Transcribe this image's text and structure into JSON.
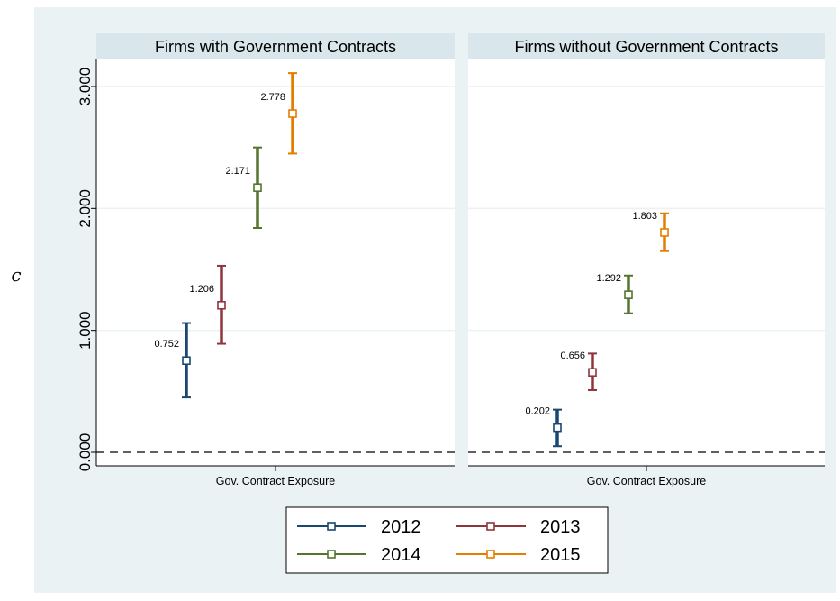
{
  "chart_data": {
    "type": "scatter",
    "ylabel": "c",
    "ylim": [
      0,
      3.0
    ],
    "yticks": [
      {
        "value": 0,
        "label": "0.000"
      },
      {
        "value": 1,
        "label": "1.000"
      },
      {
        "value": 2,
        "label": "2.000"
      },
      {
        "value": 3,
        "label": "3.000"
      }
    ],
    "reference_line": 0,
    "grid": true,
    "legend_position": "bottom",
    "colors": {
      "2012": "#1a476f",
      "2013": "#90353b",
      "2014": "#55752f",
      "2015": "#e37e00",
      "background": "#eaf2f3",
      "panel_header": "#d9e6eb"
    },
    "panels": [
      {
        "title": "Firms with Government Contracts",
        "xlabel": "Gov. Contract Exposure",
        "series": [
          {
            "name": "2012",
            "estimate": 0.752,
            "lower": 0.45,
            "upper": 1.06,
            "label": "0.752"
          },
          {
            "name": "2013",
            "estimate": 1.206,
            "lower": 0.89,
            "upper": 1.53,
            "label": "1.206"
          },
          {
            "name": "2014",
            "estimate": 2.171,
            "lower": 1.84,
            "upper": 2.5,
            "label": "2.171"
          },
          {
            "name": "2015",
            "estimate": 2.778,
            "lower": 2.45,
            "upper": 3.11,
            "label": "2.778"
          }
        ]
      },
      {
        "title": "Firms without Government Contracts",
        "xlabel": "Gov. Contract Exposure",
        "series": [
          {
            "name": "2012",
            "estimate": 0.202,
            "lower": 0.05,
            "upper": 0.35,
            "label": "0.202"
          },
          {
            "name": "2013",
            "estimate": 0.656,
            "lower": 0.51,
            "upper": 0.81,
            "label": "0.656"
          },
          {
            "name": "2014",
            "estimate": 1.292,
            "lower": 1.14,
            "upper": 1.45,
            "label": "1.292"
          },
          {
            "name": "2015",
            "estimate": 1.803,
            "lower": 1.65,
            "upper": 1.96,
            "label": "1.803"
          }
        ]
      }
    ],
    "legend": [
      "2012",
      "2013",
      "2014",
      "2015"
    ]
  }
}
